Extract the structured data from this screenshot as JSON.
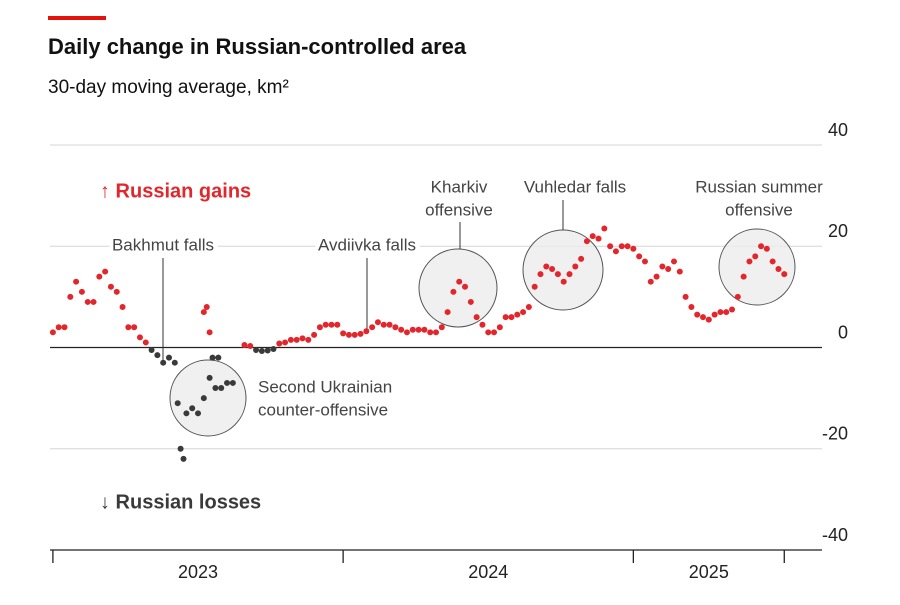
{
  "chart_data": {
    "type": "scatter",
    "title": "Daily change in Russian-controlled area",
    "subtitle": "30-day moving average, km²",
    "xlim": [
      2022.99,
      2025.65
    ],
    "xticks": [
      2023,
      2024,
      2025,
      2025.52
    ],
    "xtick_labels": [
      {
        "value": 2023.5,
        "label": "2023"
      },
      {
        "value": 2024.5,
        "label": "2024"
      },
      {
        "value": 2025.26,
        "label": "2025"
      }
    ],
    "ylim": [
      -40,
      40
    ],
    "yticks": [
      -40,
      -20,
      0,
      20,
      40
    ],
    "grid": true,
    "series": [
      {
        "name": "↑ Russian gains",
        "color": "#e3262b",
        "x": [
          2023.0,
          2023.02,
          2023.04,
          2023.06,
          2023.08,
          2023.1,
          2023.12,
          2023.14,
          2023.16,
          2023.18,
          2023.2,
          2023.22,
          2023.24,
          2023.26,
          2023.28,
          2023.3,
          2023.32,
          2023.52,
          2023.53,
          2023.54,
          2023.66,
          2023.68,
          2023.78,
          2023.8,
          2023.82,
          2023.84,
          2023.86,
          2023.88,
          2023.9,
          2023.92,
          2023.94,
          2023.96,
          2023.98,
          2024.0,
          2024.02,
          2024.04,
          2024.06,
          2024.08,
          2024.1,
          2024.12,
          2024.14,
          2024.16,
          2024.18,
          2024.2,
          2024.22,
          2024.24,
          2024.26,
          2024.28,
          2024.3,
          2024.32,
          2024.34,
          2024.36,
          2024.38,
          2024.4,
          2024.42,
          2024.44,
          2024.46,
          2024.48,
          2024.5,
          2024.52,
          2024.54,
          2024.56,
          2024.58,
          2024.6,
          2024.62,
          2024.64,
          2024.66,
          2024.68,
          2024.7,
          2024.72,
          2024.74,
          2024.76,
          2024.78,
          2024.8,
          2024.82,
          2024.84,
          2024.86,
          2024.88,
          2024.9,
          2024.92,
          2024.94,
          2024.96,
          2024.98,
          2025.0,
          2025.02,
          2025.04,
          2025.06,
          2025.08,
          2025.1,
          2025.12,
          2025.14,
          2025.16,
          2025.18,
          2025.2,
          2025.22,
          2025.24,
          2025.26,
          2025.28,
          2025.3,
          2025.32,
          2025.34,
          2025.36,
          2025.38,
          2025.4,
          2025.42,
          2025.44,
          2025.46,
          2025.48,
          2025.5,
          2025.52
        ],
        "values": [
          3,
          4,
          4,
          10,
          13,
          11,
          9,
          9,
          14,
          15,
          12,
          11,
          8,
          4,
          4,
          2,
          1,
          7,
          8,
          3,
          0.5,
          0.3,
          0.8,
          1,
          1.5,
          1.5,
          1.8,
          1.5,
          2.5,
          4,
          4.5,
          4.5,
          4.5,
          2.8,
          2.5,
          2.5,
          2.7,
          3.2,
          4,
          5,
          4.5,
          4.5,
          4,
          3.5,
          3,
          3.5,
          3.5,
          3.5,
          3,
          3,
          4,
          7,
          11,
          13,
          12,
          9,
          6,
          4.5,
          3,
          3,
          4,
          6,
          6,
          6.5,
          7,
          8,
          12,
          14.5,
          16,
          15.5,
          14.5,
          13,
          14.5,
          16,
          17.5,
          21,
          22,
          21.5,
          23.5,
          20,
          19,
          20,
          20,
          19.5,
          18,
          17,
          13,
          14,
          16,
          15.5,
          17,
          15,
          10,
          8,
          6.5,
          6,
          5.5,
          6.5,
          7,
          7,
          7.5,
          10,
          14,
          17,
          18,
          20,
          19.5,
          17,
          15.5,
          14.5
        ]
      },
      {
        "name": "↓ Russian losses",
        "color": "#3a3a3a",
        "x": [
          2023.34,
          2023.36,
          2023.38,
          2023.4,
          2023.42,
          2023.43,
          2023.44,
          2023.45,
          2023.46,
          2023.48,
          2023.5,
          2023.52,
          2023.54,
          2023.55,
          2023.56,
          2023.57,
          2023.58,
          2023.6,
          2023.62,
          2023.7,
          2023.72,
          2023.74,
          2023.76
        ],
        "values": [
          -0.5,
          -1.5,
          -3,
          -2,
          -3,
          -11,
          -20,
          -22,
          -13,
          -12,
          -13,
          -10,
          -6,
          -2,
          -8,
          -2,
          -8,
          -7,
          -7,
          -0.5,
          -0.7,
          -0.6,
          -0.3
        ]
      }
    ],
    "annotations": [
      {
        "lines": [
          "Bakhmut falls"
        ]
      },
      {
        "lines": [
          "Avdiivka falls"
        ]
      },
      {
        "lines": [
          "Kharkiv",
          "offensive"
        ]
      },
      {
        "lines": [
          "Vuhledar falls"
        ]
      },
      {
        "lines": [
          "Russian summer",
          "offensive"
        ]
      },
      {
        "lines": [
          "Second Ukrainian",
          "counter-offensive"
        ]
      }
    ]
  }
}
